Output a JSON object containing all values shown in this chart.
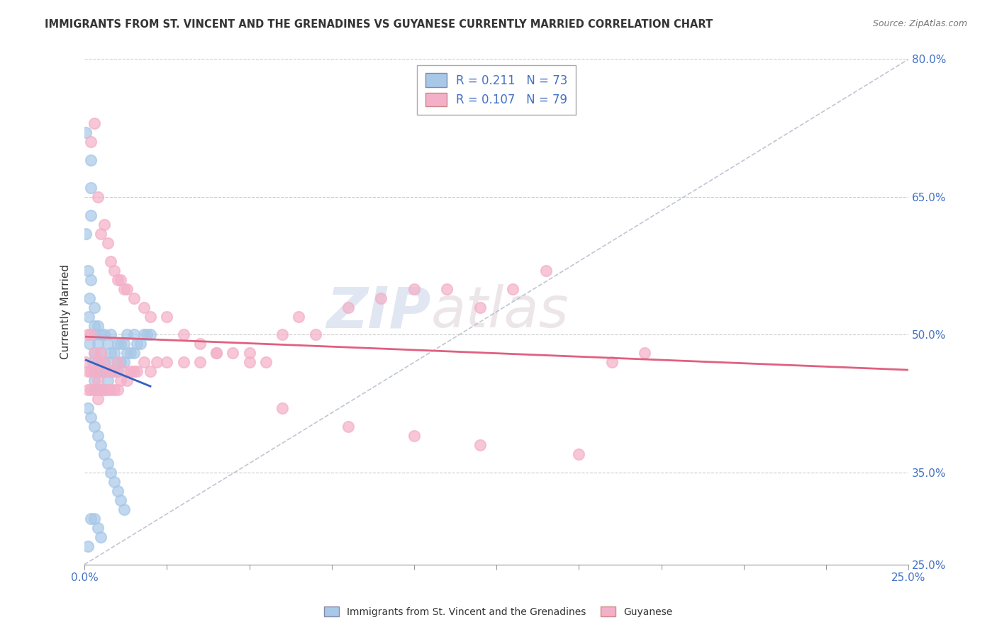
{
  "title": "IMMIGRANTS FROM ST. VINCENT AND THE GRENADINES VS GUYANESE CURRENTLY MARRIED CORRELATION CHART",
  "source": "Source: ZipAtlas.com",
  "ylabel": "Currently Married",
  "xlim": [
    0.0,
    0.25
  ],
  "ylim": [
    0.25,
    0.8
  ],
  "xtick_vals": [
    0.0,
    0.025,
    0.05,
    0.075,
    0.1,
    0.125,
    0.15,
    0.175,
    0.2,
    0.225,
    0.25
  ],
  "ytick_labels": [
    "25.0%",
    "35.0%",
    "50.0%",
    "65.0%",
    "80.0%"
  ],
  "ytick_vals": [
    0.25,
    0.35,
    0.5,
    0.65,
    0.8
  ],
  "series1_label": "Immigrants from St. Vincent and the Grenadines",
  "series2_label": "Guyanese",
  "series1_color": "#a8c8e8",
  "series2_color": "#f4b0c8",
  "series1_line_color": "#3060c0",
  "series2_line_color": "#e06080",
  "R1": 0.211,
  "N1": 73,
  "R2": 0.107,
  "N2": 79,
  "watermark_zip": "ZIP",
  "watermark_atlas": "atlas",
  "background_color": "#ffffff",
  "series1_x": [
    0.0005,
    0.0005,
    0.001,
    0.0012,
    0.0015,
    0.0015,
    0.002,
    0.002,
    0.002,
    0.002,
    0.0025,
    0.003,
    0.003,
    0.003,
    0.003,
    0.003,
    0.003,
    0.003,
    0.004,
    0.004,
    0.004,
    0.004,
    0.004,
    0.005,
    0.005,
    0.005,
    0.005,
    0.006,
    0.006,
    0.006,
    0.006,
    0.007,
    0.007,
    0.007,
    0.008,
    0.008,
    0.008,
    0.009,
    0.009,
    0.01,
    0.01,
    0.01,
    0.011,
    0.011,
    0.012,
    0.012,
    0.013,
    0.013,
    0.014,
    0.015,
    0.015,
    0.016,
    0.017,
    0.018,
    0.019,
    0.02,
    0.001,
    0.002,
    0.003,
    0.004,
    0.005,
    0.006,
    0.007,
    0.008,
    0.009,
    0.01,
    0.011,
    0.012,
    0.002,
    0.003,
    0.004,
    0.005,
    0.001
  ],
  "series1_y": [
    0.72,
    0.61,
    0.57,
    0.52,
    0.54,
    0.49,
    0.56,
    0.63,
    0.66,
    0.69,
    0.47,
    0.44,
    0.45,
    0.46,
    0.48,
    0.5,
    0.51,
    0.53,
    0.44,
    0.46,
    0.47,
    0.49,
    0.51,
    0.44,
    0.46,
    0.48,
    0.5,
    0.44,
    0.46,
    0.47,
    0.5,
    0.45,
    0.47,
    0.49,
    0.46,
    0.48,
    0.5,
    0.46,
    0.48,
    0.46,
    0.47,
    0.49,
    0.47,
    0.49,
    0.47,
    0.49,
    0.48,
    0.5,
    0.48,
    0.48,
    0.5,
    0.49,
    0.49,
    0.5,
    0.5,
    0.5,
    0.42,
    0.41,
    0.4,
    0.39,
    0.38,
    0.37,
    0.36,
    0.35,
    0.34,
    0.33,
    0.32,
    0.31,
    0.3,
    0.3,
    0.29,
    0.28,
    0.27
  ],
  "series2_x": [
    0.0005,
    0.001,
    0.001,
    0.001,
    0.002,
    0.002,
    0.002,
    0.003,
    0.003,
    0.003,
    0.004,
    0.004,
    0.004,
    0.005,
    0.005,
    0.005,
    0.006,
    0.006,
    0.007,
    0.007,
    0.008,
    0.008,
    0.009,
    0.009,
    0.01,
    0.01,
    0.011,
    0.012,
    0.013,
    0.014,
    0.015,
    0.016,
    0.018,
    0.02,
    0.022,
    0.025,
    0.03,
    0.035,
    0.04,
    0.045,
    0.05,
    0.055,
    0.06,
    0.065,
    0.07,
    0.08,
    0.09,
    0.1,
    0.11,
    0.12,
    0.13,
    0.14,
    0.16,
    0.17,
    0.002,
    0.003,
    0.004,
    0.005,
    0.006,
    0.007,
    0.008,
    0.009,
    0.01,
    0.011,
    0.012,
    0.013,
    0.015,
    0.018,
    0.02,
    0.025,
    0.03,
    0.035,
    0.04,
    0.05,
    0.06,
    0.08,
    0.1,
    0.12,
    0.15
  ],
  "series2_y": [
    0.47,
    0.44,
    0.46,
    0.5,
    0.44,
    0.46,
    0.5,
    0.44,
    0.46,
    0.48,
    0.43,
    0.45,
    0.47,
    0.44,
    0.46,
    0.48,
    0.44,
    0.47,
    0.44,
    0.46,
    0.44,
    0.46,
    0.44,
    0.46,
    0.44,
    0.47,
    0.45,
    0.46,
    0.45,
    0.46,
    0.46,
    0.46,
    0.47,
    0.46,
    0.47,
    0.47,
    0.47,
    0.47,
    0.48,
    0.48,
    0.48,
    0.47,
    0.5,
    0.52,
    0.5,
    0.53,
    0.54,
    0.55,
    0.55,
    0.53,
    0.55,
    0.57,
    0.47,
    0.48,
    0.71,
    0.73,
    0.65,
    0.61,
    0.62,
    0.6,
    0.58,
    0.57,
    0.56,
    0.56,
    0.55,
    0.55,
    0.54,
    0.53,
    0.52,
    0.52,
    0.5,
    0.49,
    0.48,
    0.47,
    0.42,
    0.4,
    0.39,
    0.38,
    0.37
  ]
}
